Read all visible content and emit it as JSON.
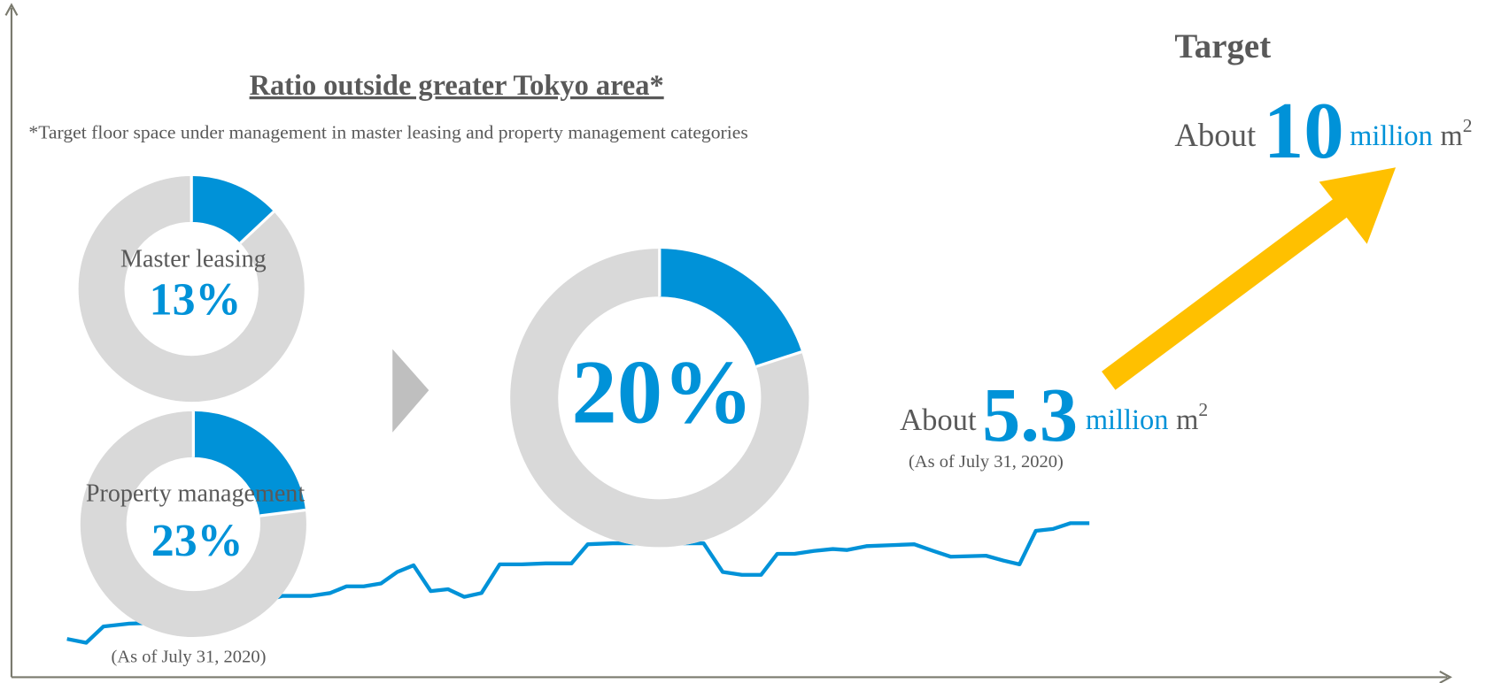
{
  "title": "Ratio outside greater Tokyo area*",
  "footnote": "*Target floor space under management in master leasing and property management categories",
  "donuts": [
    {
      "label": "Master leasing",
      "value": 13,
      "value_label": "13%"
    },
    {
      "label": "Property management",
      "value": 23,
      "value_label": "23%"
    }
  ],
  "donuts_date": "(As of July 31, 2020)",
  "target_ratio": {
    "value": 20,
    "value_label": "20%"
  },
  "current": {
    "prefix": "About",
    "value": 5.3,
    "unit": "million",
    "unit2": "m",
    "sup": "2",
    "date": "(As of July 31, 2020)"
  },
  "target": {
    "heading": "Target",
    "prefix": "About",
    "value": 10,
    "unit": "million",
    "unit2": "m",
    "sup": "2"
  }
}
